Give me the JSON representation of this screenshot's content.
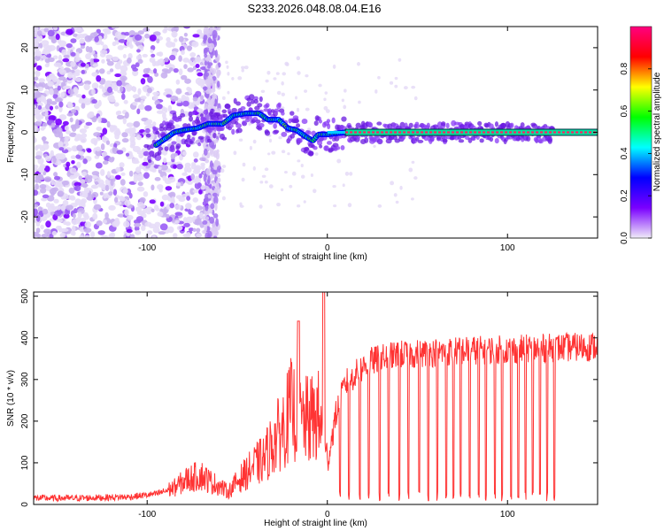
{
  "figure": {
    "title": "S233.2026.048.08.04.E16"
  },
  "chart_data": [
    {
      "type": "heatmap",
      "title": "S233.2026.048.08.04.E16",
      "xlabel": "Height of straight line (km)",
      "ylabel": "Frequency (Hz)",
      "xlim": [
        -163,
        150
      ],
      "ylim": [
        -25,
        25
      ],
      "xticks": [
        -100,
        0,
        100
      ],
      "xtick_labels": [
        "-100",
        "0",
        "100"
      ],
      "yticks": [
        -20,
        -10,
        0,
        10,
        20
      ],
      "ytick_labels": [
        "-20",
        "-10",
        "0",
        "10",
        "20"
      ],
      "colorbar": {
        "label": "Normalized spectral amplitude",
        "range": [
          0,
          1
        ],
        "ticks": [
          0,
          0.2,
          0.4,
          0.6,
          0.8
        ],
        "tick_labels": [
          "0.0",
          "0.2",
          "0.4",
          "0.6",
          "0.8"
        ],
        "colormap": [
          "#f0ecf8",
          "#7a00ff",
          "#0000ff",
          "#00ffff",
          "#00ff00",
          "#ffff00",
          "#ff0000",
          "#ff0080"
        ]
      },
      "ridge_frequency_hz": [
        {
          "x": -95,
          "f": -3
        },
        {
          "x": -90,
          "f": -1.5
        },
        {
          "x": -85,
          "f": 0
        },
        {
          "x": -80,
          "f": 0.5
        },
        {
          "x": -72,
          "f": 1
        },
        {
          "x": -66,
          "f": 2
        },
        {
          "x": -58,
          "f": 2
        },
        {
          "x": -52,
          "f": 4
        },
        {
          "x": -45,
          "f": 4.5
        },
        {
          "x": -38,
          "f": 4.5
        },
        {
          "x": -33,
          "f": 3
        },
        {
          "x": -27,
          "f": 3
        },
        {
          "x": -22,
          "f": 1
        },
        {
          "x": -17,
          "f": 0.5
        },
        {
          "x": -12,
          "f": -1
        },
        {
          "x": -8,
          "f": -2
        },
        {
          "x": -5,
          "f": -0.5
        },
        {
          "x": 0,
          "f": -0.5
        },
        {
          "x": 10,
          "f": 0
        },
        {
          "x": 150,
          "f": 0
        }
      ],
      "reference_line_hz": 0,
      "reference_line_xrange": [
        10,
        150
      ]
    },
    {
      "type": "line",
      "xlabel": "Height of straight line (km)",
      "ylabel": "SNR (10 * v/v)",
      "xlim": [
        -163,
        150
      ],
      "ylim": [
        0,
        510
      ],
      "xticks": [
        -100,
        0,
        100
      ],
      "xtick_labels": [
        "-100",
        "0",
        "100"
      ],
      "yticks": [
        0,
        100,
        200,
        300,
        400,
        500
      ],
      "ytick_labels": [
        "0",
        "100",
        "200",
        "300",
        "400",
        "500"
      ],
      "series": [
        {
          "name": "SNR",
          "color": "#ff3333",
          "envelope_x": [
            -163,
            -140,
            -110,
            -95,
            -85,
            -78,
            -70,
            -65,
            -60,
            -55,
            -50,
            -45,
            -40,
            -35,
            -30,
            -25,
            -20,
            -15,
            -10,
            -5,
            0,
            5,
            10,
            15,
            20,
            25,
            30,
            35,
            40,
            50,
            60,
            80,
            100,
            120,
            140,
            150
          ],
          "envelope_y": [
            15,
            15,
            18,
            25,
            40,
            60,
            70,
            55,
            45,
            30,
            55,
            75,
            95,
            110,
            150,
            180,
            230,
            200,
            200,
            210,
            100,
            220,
            290,
            310,
            330,
            345,
            350,
            355,
            360,
            362,
            365,
            370,
            372,
            375,
            378,
            380
          ],
          "spikes": [
            {
              "x": -16,
              "y": 440
            },
            {
              "x": -2,
              "y": 510
            }
          ],
          "dropouts_x": [
            7,
            12,
            18,
            23,
            29,
            34,
            40,
            45,
            51,
            56,
            61,
            66,
            70,
            74,
            79,
            84,
            88,
            93,
            97,
            102,
            106,
            110,
            114,
            118,
            122,
            126
          ],
          "dropout_floor": 8,
          "dropout_end_x": 127
        }
      ]
    }
  ]
}
